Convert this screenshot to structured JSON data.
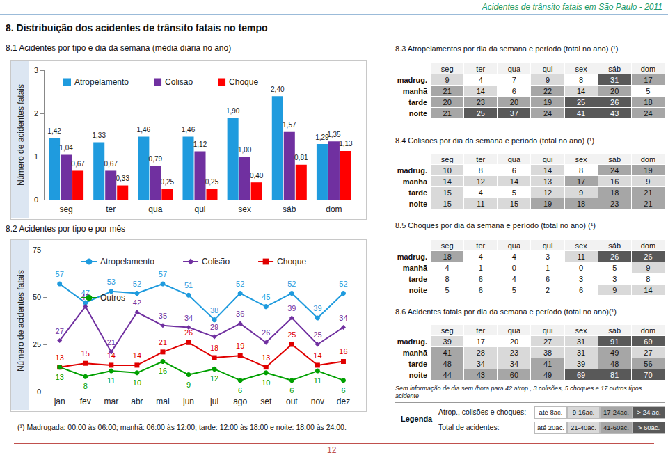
{
  "header": {
    "running_title": "Acidentes de trânsito fatais em São Paulo - 2011",
    "section_title": "8. Distribuição dos acidentes de trânsito fatais no tempo",
    "page_number": "12"
  },
  "chart_data": [
    {
      "type": "bar",
      "title": "8.1 Acidentes por tipo e dia da semana (média diária no ano)",
      "y_label": "Número de acidentes fatais",
      "categories": [
        "seg",
        "ter",
        "qua",
        "qui",
        "sex",
        "sáb",
        "dom"
      ],
      "series": [
        {
          "name": "Atropelamento",
          "color": "#1f9bde",
          "values": [
            1.42,
            1.33,
            1.46,
            1.46,
            1.9,
            2.4,
            1.29
          ],
          "value_labels": [
            "1,42",
            "1,33",
            "1,46",
            "1,46",
            "1,90",
            "2,40",
            "1,29"
          ]
        },
        {
          "name": "Colisão",
          "color": "#7030a0",
          "values": [
            1.04,
            0.67,
            0.79,
            1.12,
            1.0,
            1.57,
            1.35
          ],
          "value_labels": [
            "1,04",
            "0,67",
            "0,79",
            "1,12",
            "1,00",
            "1,57",
            "1,35"
          ]
        },
        {
          "name": "Choque",
          "color": "#ff0000",
          "values": [
            0.67,
            0.33,
            0.25,
            0.25,
            0.4,
            0.81,
            1.13
          ],
          "value_labels": [
            "0,67",
            "0,33",
            "0,25",
            "0,25",
            "0,40",
            "0,81",
            "1,13"
          ]
        }
      ],
      "ylim": [
        0,
        3
      ],
      "yticks": [
        0,
        1,
        2,
        3
      ],
      "grid": false,
      "legend": "top",
      "data_labels": true
    },
    {
      "type": "line",
      "title": "8.2 Acidentes por tipo e por mês",
      "y_label": "Número de acidentes fatais",
      "categories": [
        "jan",
        "fev",
        "mar",
        "abr",
        "mai",
        "jun",
        "jul",
        "ago",
        "set",
        "out",
        "nov",
        "dez"
      ],
      "series": [
        {
          "name": "Atropelamento",
          "color": "#1f9bde",
          "marker": "circle",
          "values": [
            57,
            47,
            53,
            52,
            57,
            51,
            38,
            52,
            45,
            52,
            39,
            52
          ]
        },
        {
          "name": "Colisão",
          "color": "#7030a0",
          "marker": "diamond",
          "values": [
            27,
            45,
            21,
            42,
            35,
            34,
            29,
            36,
            26,
            39,
            25,
            34
          ]
        },
        {
          "name": "Choque",
          "color": "#e00000",
          "marker": "square",
          "values": [
            13,
            15,
            14,
            14,
            21,
            26,
            18,
            19,
            13,
            25,
            14,
            16
          ]
        },
        {
          "name": "Outros",
          "color": "#00a000",
          "marker": "circle",
          "values": [
            13,
            8,
            11,
            10,
            16,
            9,
            12,
            6,
            10,
            6,
            11,
            6
          ]
        }
      ],
      "ylim": [
        0,
        75
      ],
      "yticks": [
        0,
        25,
        50,
        75
      ],
      "grid": false,
      "legend": "top",
      "data_labels": true
    }
  ],
  "tables": [
    {
      "title": "8.3 Atropelamentos por dia da semana e período (total no ano) (¹)",
      "columns": [
        "seg",
        "ter",
        "qua",
        "qui",
        "sex",
        "sáb",
        "dom"
      ],
      "rows": [
        {
          "label": "madrug.",
          "values": [
            9,
            4,
            7,
            9,
            8,
            31,
            17
          ]
        },
        {
          "label": "manhã",
          "values": [
            21,
            14,
            6,
            22,
            14,
            20,
            5
          ]
        },
        {
          "label": "tarde",
          "values": [
            20,
            23,
            20,
            19,
            25,
            26,
            18
          ]
        },
        {
          "label": "noite",
          "values": [
            21,
            25,
            37,
            24,
            41,
            43,
            24
          ]
        }
      ]
    },
    {
      "title": "8.4 Colisões por dia da semana e período (total no ano) (¹)",
      "columns": [
        "seg",
        "ter",
        "qua",
        "qui",
        "sex",
        "sáb",
        "dom"
      ],
      "rows": [
        {
          "label": "madrug.",
          "values": [
            10,
            8,
            6,
            14,
            8,
            24,
            19
          ]
        },
        {
          "label": "manhã",
          "values": [
            14,
            12,
            14,
            13,
            17,
            16,
            9
          ]
        },
        {
          "label": "tarde",
          "values": [
            15,
            4,
            5,
            12,
            9,
            18,
            21
          ]
        },
        {
          "label": "noite",
          "values": [
            15,
            11,
            15,
            19,
            18,
            23,
            21
          ]
        }
      ]
    },
    {
      "title": "8.5 Choques por dia da semana e período (total no ano) (¹)",
      "columns": [
        "seg",
        "ter",
        "qua",
        "qui",
        "sex",
        "sáb",
        "dom"
      ],
      "rows": [
        {
          "label": "madrug.",
          "values": [
            18,
            4,
            4,
            3,
            11,
            26,
            26
          ]
        },
        {
          "label": "manhã",
          "values": [
            4,
            1,
            0,
            1,
            0,
            5,
            9
          ]
        },
        {
          "label": "tarde",
          "values": [
            8,
            6,
            4,
            6,
            3,
            3,
            8
          ]
        },
        {
          "label": "noite",
          "values": [
            5,
            6,
            5,
            2,
            6,
            9,
            14
          ]
        }
      ]
    },
    {
      "title": "8.6 Acidentes fatais por dia da semana e período (total no ano)(¹)",
      "columns": [
        "seg",
        "ter",
        "qua",
        "qui",
        "sex",
        "sáb",
        "dom"
      ],
      "rows": [
        {
          "label": "madrug.",
          "values": [
            39,
            17,
            20,
            27,
            31,
            91,
            69
          ]
        },
        {
          "label": "manhã",
          "values": [
            41,
            28,
            23,
            38,
            31,
            49,
            27
          ]
        },
        {
          "label": "tarde",
          "values": [
            48,
            34,
            34,
            41,
            39,
            48,
            56
          ]
        },
        {
          "label": "noite",
          "values": [
            44,
            43,
            60,
            49,
            69,
            81,
            70
          ]
        }
      ]
    }
  ],
  "note": "Sem informação de dia sem./hora para 42 atrop., 3 colisões, 5 choques e 17 outros tipos acidente",
  "color_legend": {
    "title": "Legenda",
    "scales": [
      {
        "label": "Atrop., colisões e choques:",
        "bins": [
          {
            "label": "até 8ac.",
            "max": 8,
            "color": "#ffffff"
          },
          {
            "label": "9-16ac.",
            "max": 16,
            "color": "#d9d9d9"
          },
          {
            "label": "17-24ac.",
            "max": 24,
            "color": "#a6a6a6"
          },
          {
            "label": "> 24 ac.",
            "max": null,
            "color": "#595959"
          }
        ]
      },
      {
        "label": "Total de acidentes:",
        "bins": [
          {
            "label": "até 20ac.",
            "max": 20,
            "color": "#ffffff"
          },
          {
            "label": "21-40ac.",
            "max": 40,
            "color": "#d9d9d9"
          },
          {
            "label": "41-60ac.",
            "max": 60,
            "color": "#a6a6a6"
          },
          {
            "label": "> 60ac.",
            "max": null,
            "color": "#595959"
          }
        ]
      }
    ]
  },
  "footnote": "(¹) Madrugada: 00:00 às 06:00; manhã: 06:00 às 12:00; tarde: 12:00 às 18:00 e noite: 18:00 às 24:00."
}
